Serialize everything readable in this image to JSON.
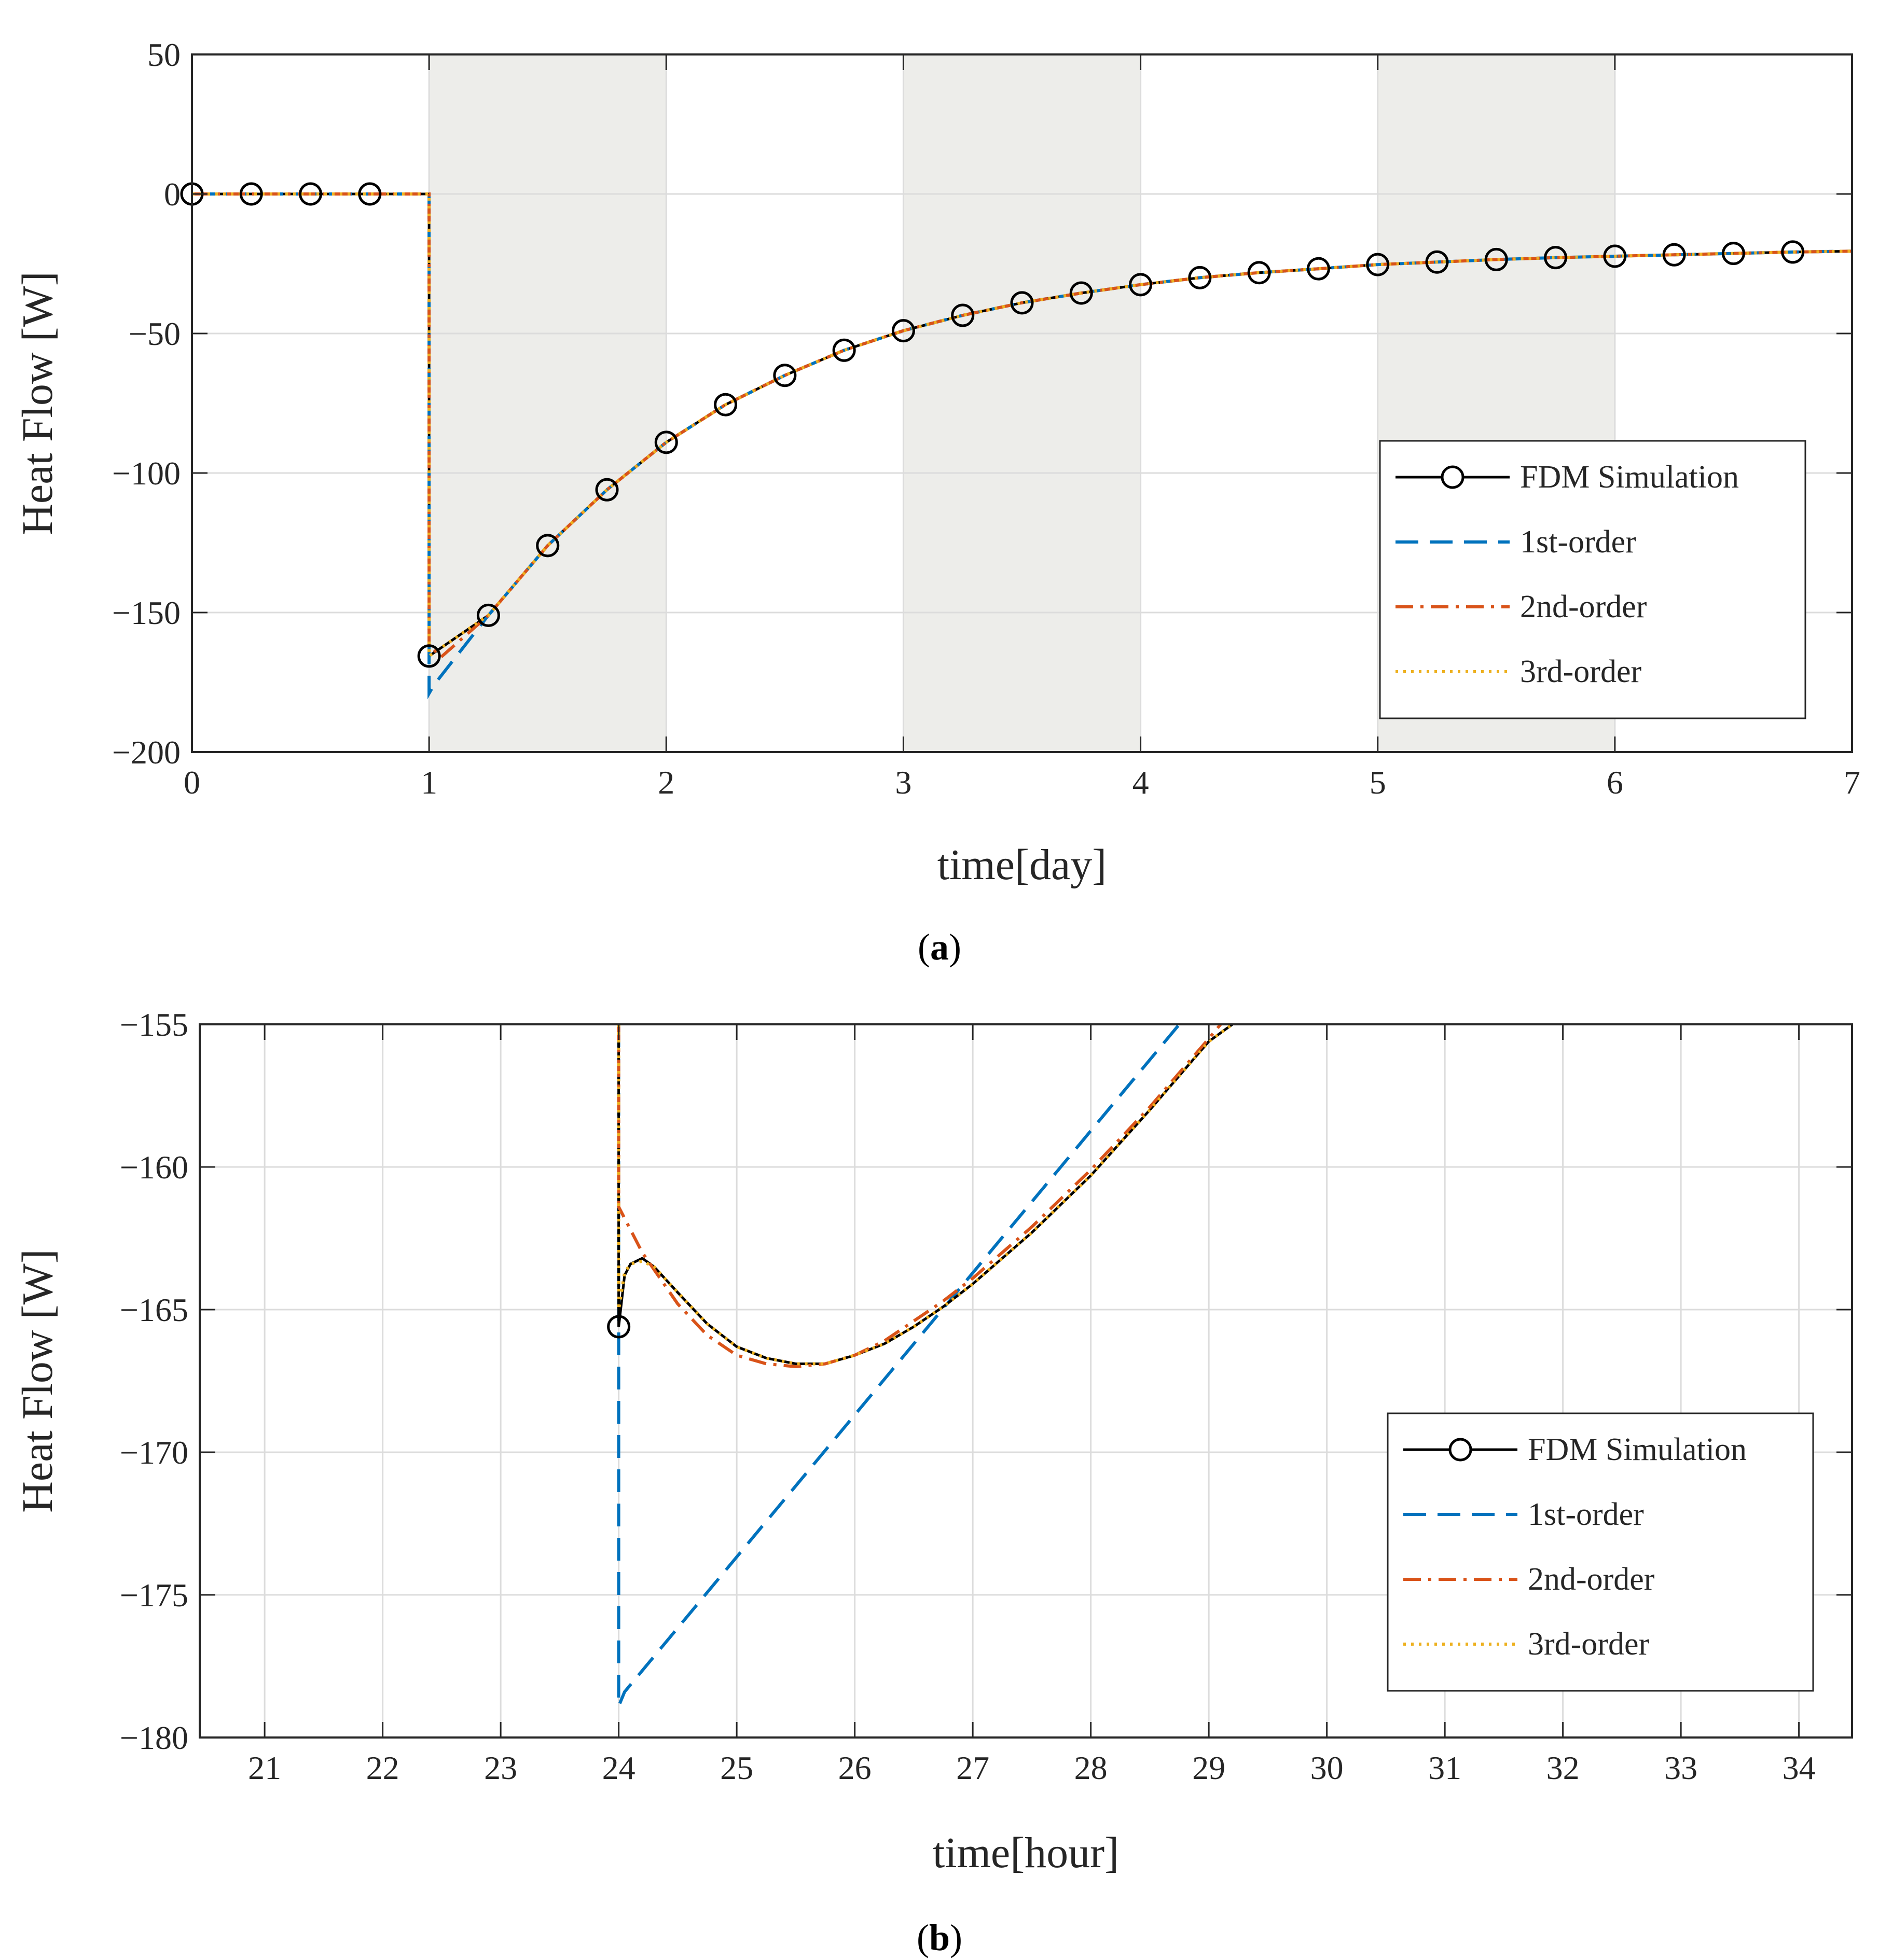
{
  "chart_data": [
    {
      "type": "line",
      "panel_label": "a",
      "xlabel": "time[day]",
      "ylabel": "Heat Flow [W]",
      "xlim": [
        0,
        7
      ],
      "ylim": [
        -200,
        50
      ],
      "xticks": [
        0,
        1,
        2,
        3,
        4,
        5,
        6,
        7
      ],
      "yticks": [
        50,
        0,
        -50,
        -100,
        -150,
        -200
      ],
      "xtick_labels": [
        "0",
        "1",
        "2",
        "3",
        "4",
        "5",
        "6",
        "7"
      ],
      "ytick_labels": [
        "50",
        "0",
        "−50",
        "−100",
        "−150",
        "−200"
      ],
      "shaded_intervals": [
        [
          1,
          2
        ],
        [
          3,
          4
        ],
        [
          5,
          6
        ]
      ],
      "grid": true,
      "legend_position": "lower-right",
      "legend": [
        "FDM Simulation",
        "1st-order",
        "2nd-order",
        "3rd-order"
      ],
      "markers": {
        "series": "FDM Simulation",
        "x": [
          0,
          0.25,
          0.5,
          0.75,
          1.0,
          1.25,
          1.5,
          1.75,
          2.0,
          2.25,
          2.5,
          2.75,
          3.0,
          3.25,
          3.5,
          3.75,
          4.0,
          4.25,
          4.5,
          4.75,
          5.0,
          5.25,
          5.5,
          5.75,
          6.0,
          6.25,
          6.5,
          6.75
        ],
        "y": [
          0,
          0,
          0,
          0,
          -165.6,
          -151,
          -126,
          -106,
          -89,
          -75.5,
          -65,
          -56,
          -49,
          -43.5,
          -39,
          -35.5,
          -32.5,
          -30,
          -28.2,
          -26.8,
          -25.3,
          -24.4,
          -23.5,
          -22.8,
          -22.3,
          -21.8,
          -21.3,
          -20.8
        ]
      },
      "series": [
        {
          "name": "FDM Simulation",
          "color": "#000000",
          "style": "solid-circle"
        },
        {
          "name": "1st-order",
          "color": "#0072BD",
          "style": "dashed"
        },
        {
          "name": "2nd-order",
          "color": "#D95319",
          "style": "dashdot"
        },
        {
          "name": "3rd-order",
          "color": "#EDB120",
          "style": "dotted"
        }
      ]
    },
    {
      "type": "line",
      "panel_label": "b",
      "xlabel": "time[hour]",
      "ylabel": "Heat Flow [W]",
      "xlim": [
        20.45,
        34.45
      ],
      "ylim": [
        -180,
        -155
      ],
      "xticks": [
        21,
        22,
        23,
        24,
        25,
        26,
        27,
        28,
        29,
        30,
        31,
        32,
        33,
        34
      ],
      "yticks": [
        -155,
        -160,
        -165,
        -170,
        -175,
        -180
      ],
      "xtick_labels": [
        "21",
        "22",
        "23",
        "24",
        "25",
        "26",
        "27",
        "28",
        "29",
        "30",
        "31",
        "32",
        "33",
        "34"
      ],
      "ytick_labels": [
        "−155",
        "−160",
        "−165",
        "−170",
        "−175",
        "−180"
      ],
      "grid": true,
      "legend_position": "lower-right",
      "legend": [
        "FDM Simulation",
        "1st-order",
        "2nd-order",
        "3rd-order"
      ],
      "markers": {
        "series": "FDM Simulation",
        "x": [
          24
        ],
        "y": [
          -165.6
        ]
      },
      "series": [
        {
          "name": "FDM Simulation",
          "color": "#000000",
          "style": "solid-circle",
          "x": [
            24,
            24,
            24.05,
            24.1,
            24.2,
            24.3,
            24.5,
            24.75,
            25,
            25.25,
            25.5,
            25.75,
            26,
            26.25,
            26.5,
            26.75,
            27,
            27.5,
            28,
            28.5,
            29,
            29.2
          ],
          "y": [
            -155,
            -165.6,
            -163.8,
            -163.4,
            -163.2,
            -163.5,
            -164.4,
            -165.5,
            -166.3,
            -166.7,
            -166.9,
            -166.9,
            -166.6,
            -166.2,
            -165.6,
            -164.9,
            -164.1,
            -162.3,
            -160.3,
            -158.0,
            -155.6,
            -155.0
          ]
        },
        {
          "name": "1st-order",
          "color": "#0072BD",
          "style": "dashed",
          "x": [
            24,
            24,
            24.05,
            28.75
          ],
          "y": [
            -155,
            -178.9,
            -178.4,
            -155
          ]
        },
        {
          "name": "2nd-order",
          "color": "#D95319",
          "style": "dashdot",
          "x": [
            24,
            24,
            24.05,
            24.2,
            24.5,
            24.75,
            25,
            25.25,
            25.5,
            25.75,
            26,
            26.25,
            26.5,
            26.75,
            27,
            27.5,
            28,
            28.5,
            29,
            29.1
          ],
          "y": [
            -155,
            -161.4,
            -161.8,
            -163.0,
            -164.8,
            -165.9,
            -166.6,
            -166.9,
            -167.0,
            -166.9,
            -166.6,
            -166.1,
            -165.4,
            -164.7,
            -163.9,
            -162.1,
            -160.1,
            -157.9,
            -155.5,
            -155.0
          ]
        },
        {
          "name": "3rd-order",
          "color": "#EDB120",
          "style": "dotted",
          "x": [
            24,
            24,
            24.05,
            24.1,
            24.2,
            24.3,
            24.5,
            24.75,
            25,
            25.25,
            25.5,
            25.75,
            26,
            26.25,
            26.5,
            26.75,
            27,
            27.5,
            28,
            28.5,
            29,
            29.2
          ],
          "y": [
            -155,
            -165.0,
            -163.7,
            -163.4,
            -163.3,
            -163.5,
            -164.4,
            -165.5,
            -166.3,
            -166.7,
            -166.9,
            -166.9,
            -166.6,
            -166.2,
            -165.6,
            -164.9,
            -164.1,
            -162.3,
            -160.3,
            -158.0,
            -155.6,
            -155.0
          ]
        }
      ]
    }
  ],
  "captions": {
    "a": {
      "open": "(",
      "letter": "a",
      "close": ")"
    },
    "b": {
      "open": "(",
      "letter": "b",
      "close": ")"
    }
  },
  "colors": {
    "shade": "#EDEDEA",
    "grid": "#DCDCDC",
    "axis": "#262626"
  }
}
